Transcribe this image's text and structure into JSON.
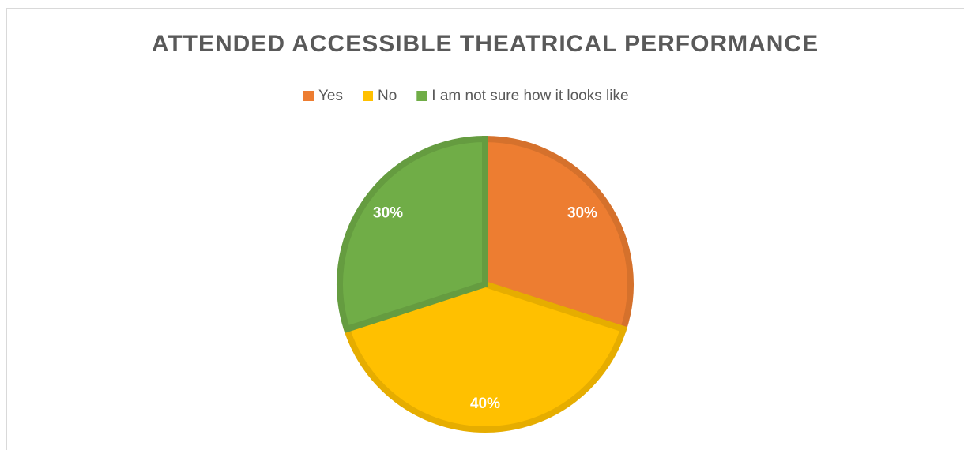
{
  "chart_data": {
    "type": "pie",
    "title": "ATTENDED ACCESSIBLE THEATRICAL PERFORMANCE",
    "categories": [
      "Yes",
      "No",
      "I am not sure how it looks like"
    ],
    "values": [
      30,
      40,
      30
    ],
    "value_labels": [
      "30%",
      "40%",
      "30%"
    ],
    "colors": [
      "#ED7D31",
      "#FFC000",
      "#70AD47"
    ],
    "legend": "top"
  }
}
